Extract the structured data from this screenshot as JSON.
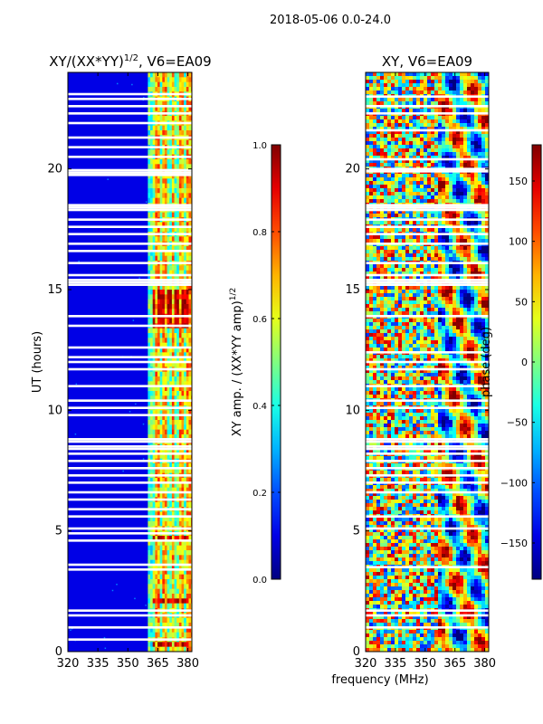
{
  "figure": {
    "suptitle": "2018-05-06 0.0-24.0",
    "xlabel": "frequency (MHz)"
  },
  "colors": {
    "background": "#ffffff",
    "axes": "#000000",
    "gap": "#ffffff",
    "colormap": "jet"
  },
  "chart_data": [
    {
      "type": "heatmap",
      "title": "XY/(XX*YY)^{1/2}, V6=EA09",
      "title_main": "XY/(XX*YY)",
      "title_sup": "1/2",
      "title_tail": ", V6=EA09",
      "xlabel": "",
      "ylabel": "UT (hours)",
      "xlim": [
        320,
        382
      ],
      "ylim": [
        0,
        24
      ],
      "xticks": [
        320,
        335,
        350,
        365,
        380
      ],
      "yticks": [
        0,
        5,
        10,
        15,
        20
      ],
      "colorbar": {
        "label_main": "XY amp. / (XX*YY amp)",
        "label_sup": "1/2",
        "range": [
          0.0,
          1.0
        ],
        "ticks": [
          "0.0",
          "0.2",
          "0.4",
          "0.6",
          "0.8",
          "1.0"
        ]
      },
      "low_signal_band_MHz": [
        320,
        360
      ],
      "channel_centers_MHz": [
        362,
        366,
        370,
        374,
        378
      ],
      "gap_hours": [
        23.1,
        22.9,
        22.6,
        22.3,
        21.9,
        21.3,
        20.9,
        20.5,
        19.95,
        19.85,
        19.75,
        18.5,
        18.4,
        18.3,
        17.9,
        17.6,
        17.3,
        16.9,
        16.6,
        16.1,
        15.6,
        15.4,
        15.3,
        15.2,
        13.9,
        13.5,
        12.6,
        12.2,
        12.0,
        11.7,
        11.0,
        10.4,
        10.1,
        9.8,
        8.8,
        8.7,
        8.5,
        8.4,
        8.2,
        7.9,
        7.6,
        7.3,
        7.0,
        6.6,
        6.3,
        5.9,
        5.6,
        5.1,
        4.9,
        4.6,
        3.6,
        3.4,
        1.7,
        1.5,
        1.0,
        0.5
      ],
      "high_amplitude_hours": [
        [
          14.9,
          13.4
        ],
        [
          4.8,
          4.6
        ],
        [
          2.2,
          2.1
        ],
        [
          0.4,
          0.2
        ]
      ]
    },
    {
      "type": "heatmap",
      "title": "XY, V6=EA09",
      "xlabel": "frequency (MHz)",
      "ylabel": "",
      "xlim": [
        320,
        382
      ],
      "ylim": [
        0,
        24
      ],
      "xticks": [
        320,
        335,
        350,
        365,
        380
      ],
      "yticks": [
        0,
        5,
        10,
        15,
        20
      ],
      "colorbar": {
        "label": "phase (deg)",
        "range": [
          -180,
          180
        ],
        "ticks": [
          "−150",
          "−100",
          "−50",
          "0",
          "50",
          "100",
          "150"
        ]
      },
      "gap_hours": [
        23.0,
        22.6,
        22.3,
        21.6,
        20.4,
        20.0,
        19.9,
        18.5,
        18.4,
        18.3,
        17.9,
        17.6,
        17.3,
        16.9,
        16.1,
        15.6,
        15.4,
        15.3,
        15.2,
        13.9,
        12.4,
        12.0,
        11.7,
        11.0,
        10.4,
        10.1,
        8.8,
        8.7,
        8.5,
        8.4,
        8.2,
        7.9,
        7.6,
        7.3,
        7.0,
        6.6,
        5.6,
        5.1,
        3.5,
        1.7,
        1.5,
        1.0
      ]
    }
  ]
}
